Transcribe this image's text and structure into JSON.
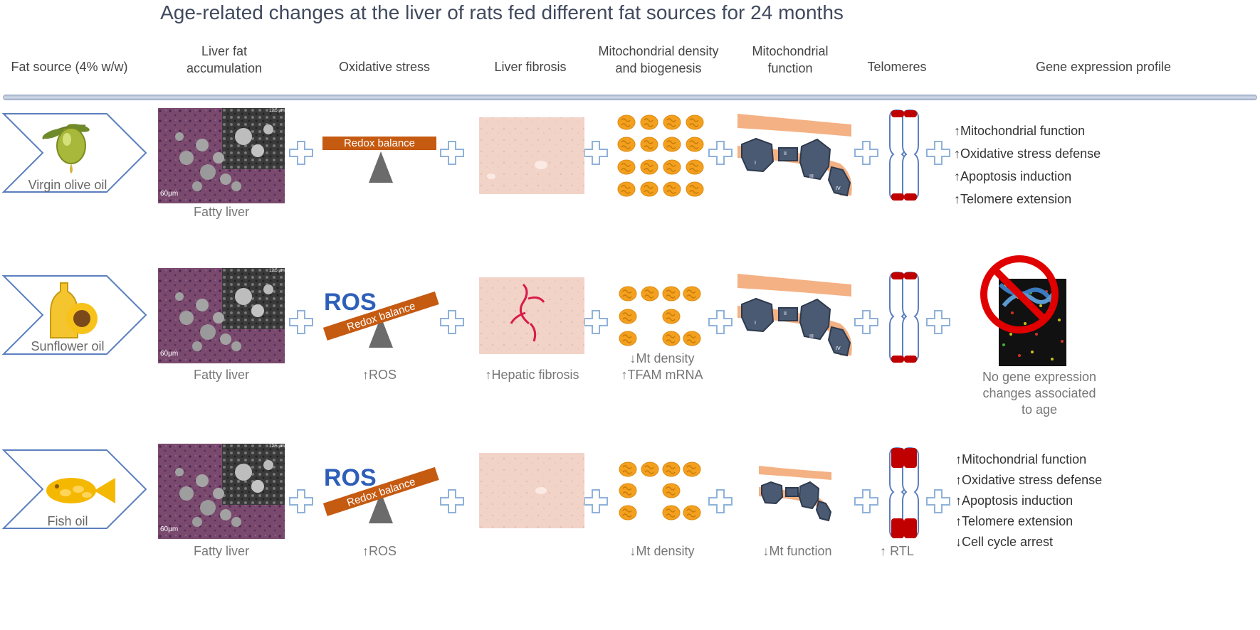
{
  "title": "Age-related changes at the liver of rats fed different fat sources for 24 months",
  "columns": {
    "fat_source": "Fat source (4% w/w)",
    "liver_fat_1": "Liver fat",
    "liver_fat_2": "accumulation",
    "oxidative": "Oxidative stress",
    "fibrosis": "Liver fibrosis",
    "mito_density_1": "Mitochondrial density",
    "mito_density_2": "and biogenesis",
    "mito_function_1": "Mitochondrial",
    "mito_function_2": "function",
    "telomeres": "Telomeres",
    "gene_expression": "Gene expression profile"
  },
  "micrograph": {
    "scale_bar": "60µm",
    "inset_scale": "12.5 µm"
  },
  "complex_labels": [
    "I",
    "II",
    "III",
    "IV"
  ],
  "rows": [
    {
      "source": "Virgin olive oil",
      "liver_caption": "Fatty liver",
      "redox_label": "Redox balance",
      "gene_lines": [
        "↑Mitochondrial function",
        "↑Oxidative stress defense",
        "↑Apoptosis induction",
        "↑Telomere extension"
      ]
    },
    {
      "source": "Sunflower oil",
      "liver_caption": "Fatty liver",
      "redox_label": "Redox balance",
      "ros_label": "ROS",
      "oxidative_caption": "↑ROS",
      "fibrosis_caption": "↑Hepatic fibrosis",
      "mito_caption_1": "↓Mt density",
      "mito_caption_2": "↑TFAM mRNA",
      "gene_caption": [
        "No gene expression",
        "changes associated",
        "to age"
      ]
    },
    {
      "source": "Fish oil",
      "liver_caption": "Fatty liver",
      "redox_label": "Redox balance",
      "ros_label": "ROS",
      "oxidative_caption": "↑ROS",
      "mito_caption": "↓Mt density",
      "mt_function_caption": "↓Mt function",
      "telomere_caption": "↑ RTL",
      "gene_lines": [
        "↑Mitochondrial function",
        "↑Oxidative stress defense",
        "↑Apoptosis induction",
        "↑Telomere extension",
        "↓Cell cycle arrest"
      ]
    }
  ],
  "colors": {
    "redox_bar": "#c55a11",
    "ros_text": "#2e5fb8",
    "mito_orange": "#f2a01e",
    "membrane": "#f4b183",
    "complex": "#4a5a72",
    "chromosome": "#c00000",
    "plus": "#8fb2d9",
    "chevron": "#5b7fbf"
  }
}
